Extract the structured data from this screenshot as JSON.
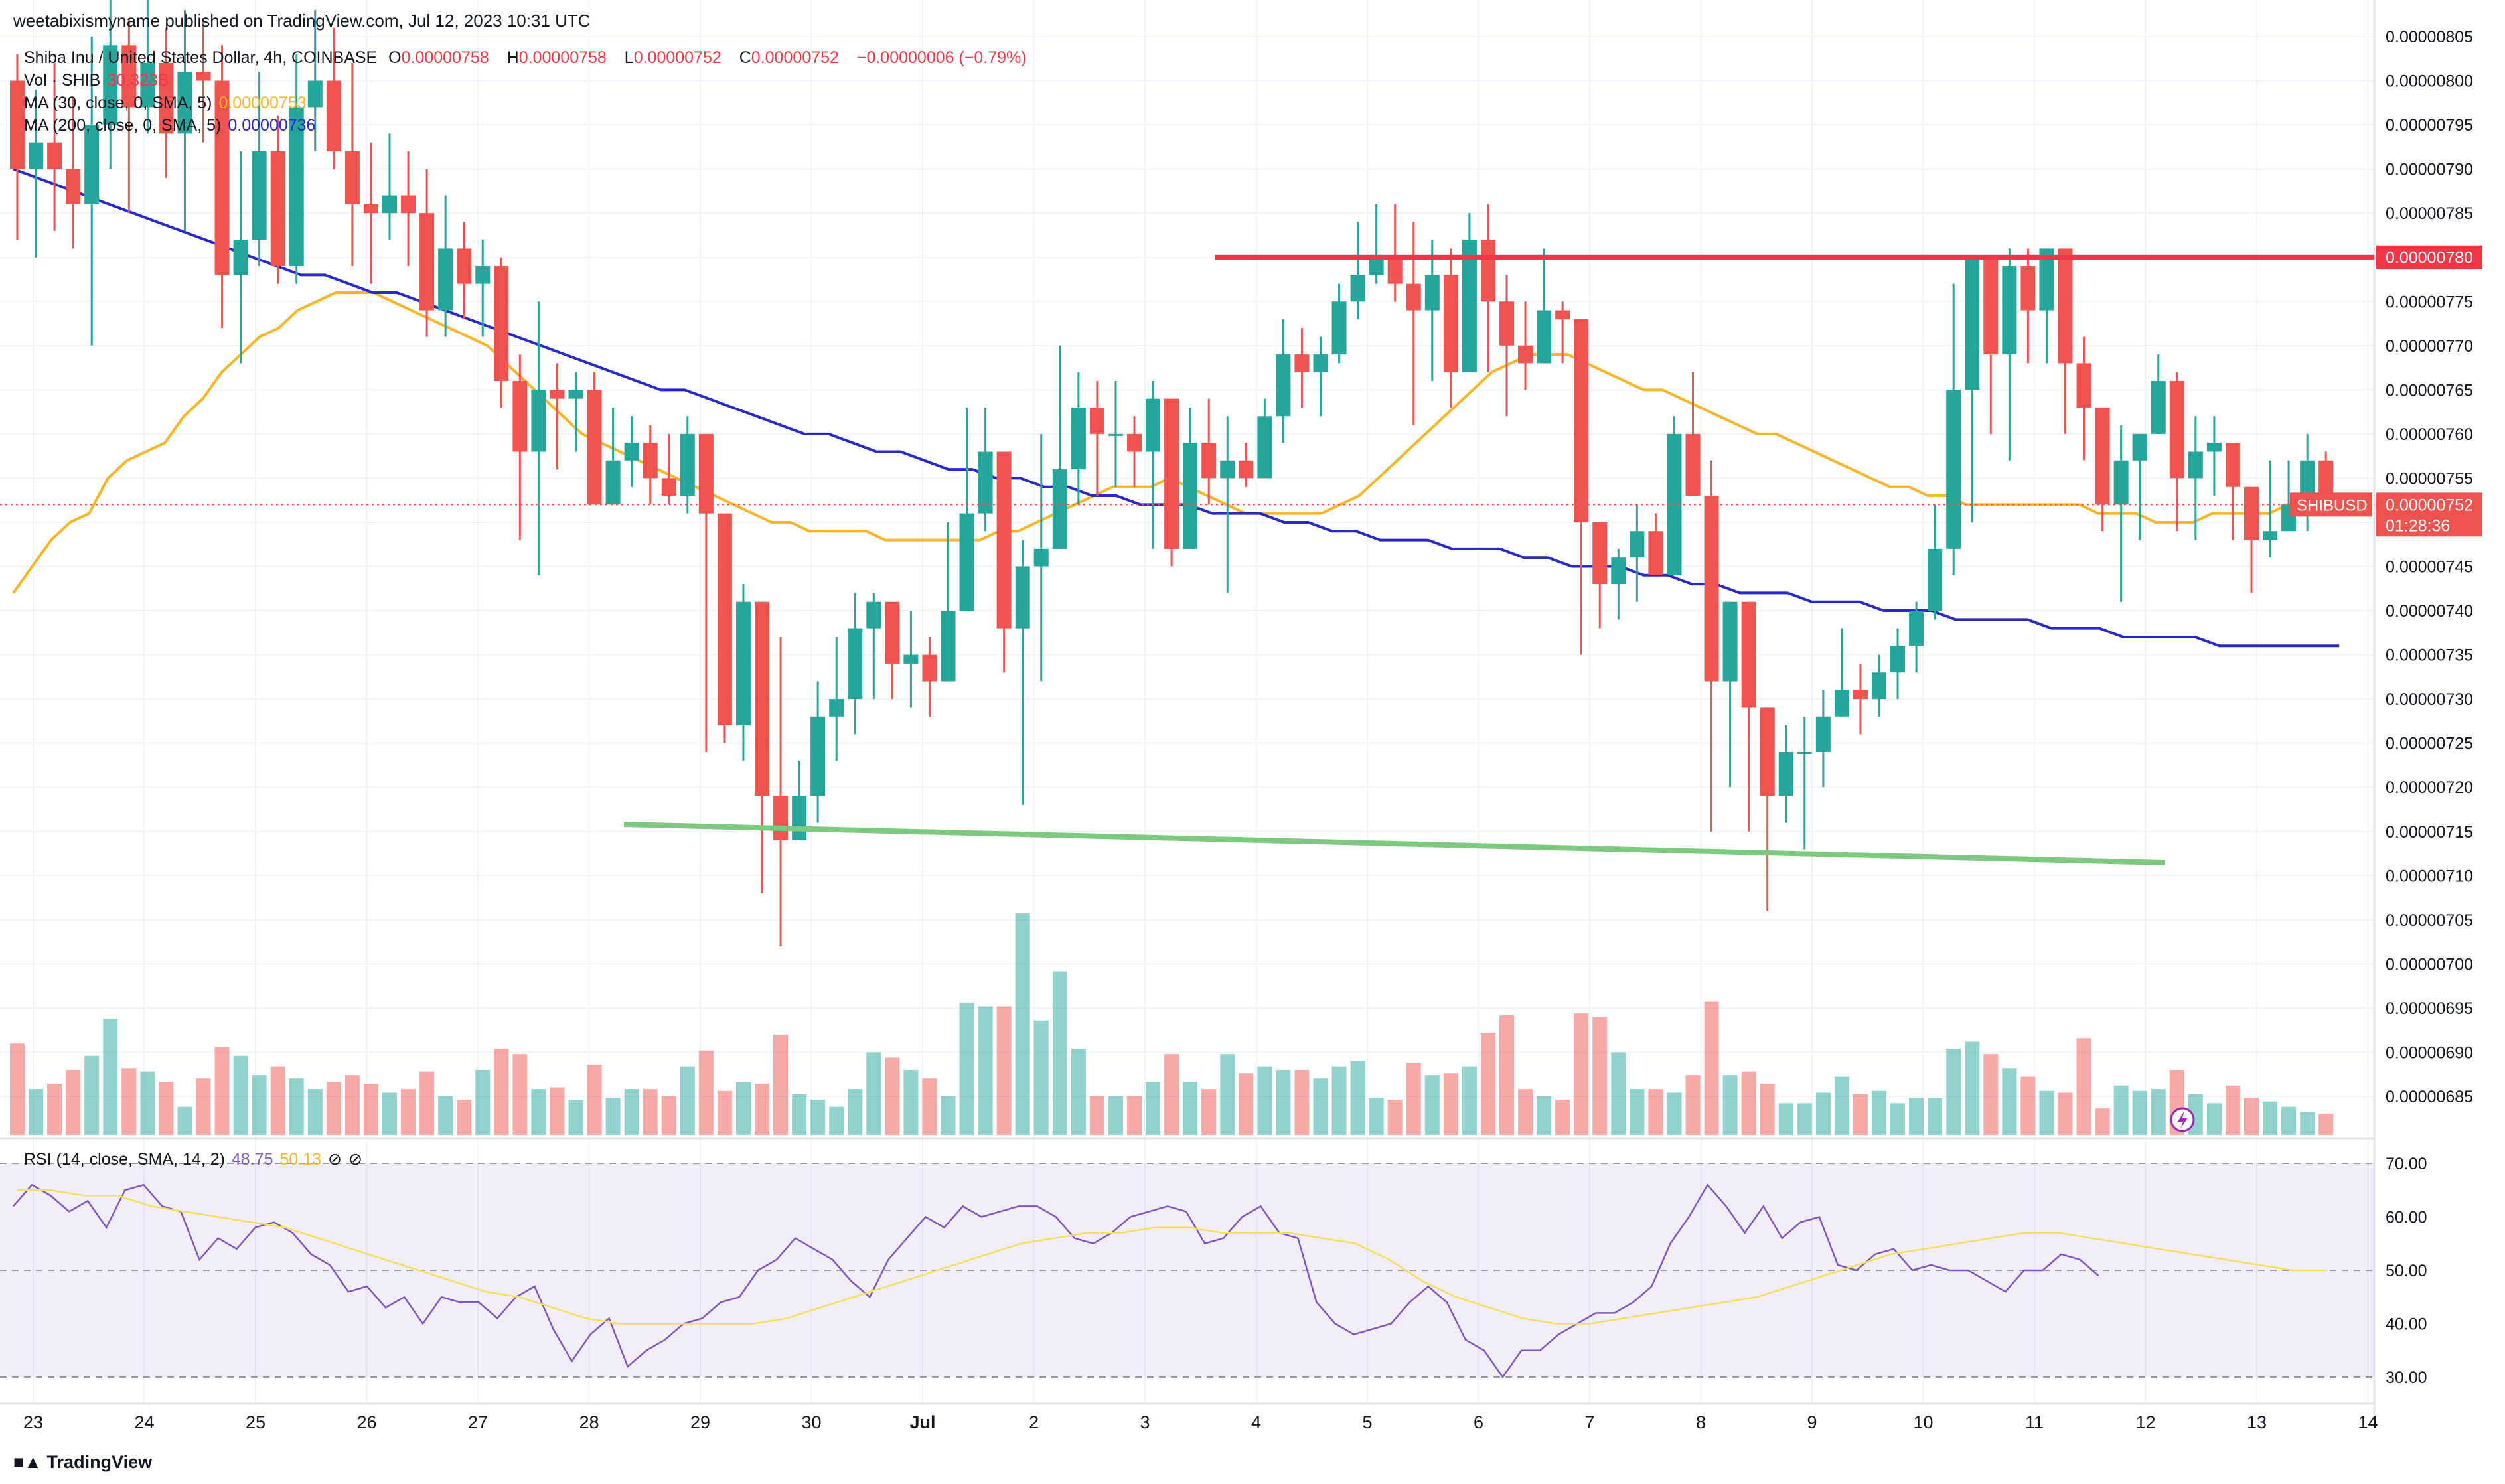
{
  "publisher_line": "weetabixismyname published on TradingView.com, Jul 12, 2023 10:31 UTC",
  "legend": {
    "symbol": "Shiba Inu / United States Dollar, 4h, COINBASE",
    "open_label": "O",
    "open": "0.00000758",
    "high_label": "H",
    "high": "0.00000758",
    "low_label": "L",
    "low": "0.00000752",
    "close_label": "C",
    "close": "0.00000752",
    "change": "−0.00000006 (−0.79%)",
    "vol_label": "Vol · SHIB",
    "vol_value": "30.323B",
    "ma30_label": "MA (30, close, 0, SMA, 5)",
    "ma30_value": "0.00000753",
    "ma200_label": "MA (200, close, 0, SMA, 5)",
    "ma200_value": "0.00000736",
    "rsi_label": "RSI (14, close, SMA, 14, 2)",
    "rsi_value": "48.75",
    "rsi_ma_value": "50.13"
  },
  "price_tag": {
    "symbol": "SHIBUSD",
    "price": "0.00000752",
    "countdown": "01:28:36"
  },
  "level_tag": {
    "price": "0.00000780"
  },
  "footer_logo": "TradingView",
  "colors": {
    "up": "#26a69a",
    "down": "#ef5350",
    "ma30": "#f7b527",
    "ma200": "#2929c8",
    "resistance": "#f23645",
    "support": "#7ec980",
    "rsi": "#7e57c2",
    "rsi_ma": "#f5e05e"
  },
  "chart_data": {
    "type": "candlestick",
    "interval": "4h",
    "y_ticks": [
      "0.00000685",
      "0.00000690",
      "0.00000695",
      "0.00000700",
      "0.00000705",
      "0.00000710",
      "0.00000715",
      "0.00000720",
      "0.00000725",
      "0.00000730",
      "0.00000735",
      "0.00000740",
      "0.00000745",
      "0.00000750",
      "0.00000755",
      "0.00000760",
      "0.00000765",
      "0.00000770",
      "0.00000775",
      "0.00000780",
      "0.00000785",
      "0.00000790",
      "0.00000795",
      "0.00000800",
      "0.00000805"
    ],
    "x_ticks": [
      "23",
      "24",
      "25",
      "26",
      "27",
      "28",
      "29",
      "30",
      "Jul",
      "2",
      "3",
      "4",
      "5",
      "6",
      "7",
      "8",
      "9",
      "10",
      "11",
      "12",
      "13",
      "14"
    ],
    "rsi_ticks": [
      "30.00",
      "40.00",
      "50.00",
      "60.00",
      "70.00"
    ],
    "candles": [
      [
        800,
        790,
        803,
        782,
        5.2
      ],
      [
        790,
        793,
        799,
        780,
        2.6
      ],
      [
        793,
        790,
        802,
        783,
        2.9
      ],
      [
        790,
        786,
        798,
        781,
        3.7
      ],
      [
        786,
        795,
        805,
        770,
        4.5
      ],
      [
        795,
        804,
        810,
        790,
        6.6
      ],
      [
        804,
        797,
        807,
        785,
        3.8
      ],
      [
        797,
        802,
        812,
        794,
        3.6
      ],
      [
        802,
        794,
        806,
        789,
        3.0
      ],
      [
        794,
        801,
        808,
        783,
        1.6
      ],
      [
        801,
        800,
        807,
        793,
        3.2
      ],
      [
        800,
        778,
        804,
        772,
        5.0
      ],
      [
        778,
        782,
        792,
        768,
        4.5
      ],
      [
        782,
        792,
        801,
        779,
        3.4
      ],
      [
        792,
        779,
        796,
        777,
        3.9
      ],
      [
        779,
        797,
        803,
        777,
        3.2
      ],
      [
        797,
        800,
        808,
        792,
        2.6
      ],
      [
        800,
        792,
        806,
        790,
        3.0
      ],
      [
        792,
        786,
        802,
        779,
        3.4
      ],
      [
        786,
        785,
        793,
        777,
        2.9
      ],
      [
        785,
        787,
        794,
        782,
        2.4
      ],
      [
        787,
        785,
        792,
        779,
        2.6
      ],
      [
        785,
        774,
        790,
        771,
        3.6
      ],
      [
        774,
        781,
        787,
        771,
        2.2
      ],
      [
        781,
        777,
        784,
        773,
        2.0
      ],
      [
        777,
        779,
        782,
        771,
        3.7
      ],
      [
        779,
        766,
        780,
        763,
        4.9
      ],
      [
        766,
        758,
        769,
        748,
        4.6
      ],
      [
        758,
        765,
        775,
        744,
        2.6
      ],
      [
        765,
        764,
        768,
        756,
        2.7
      ],
      [
        764,
        765,
        767,
        758,
        2.0
      ],
      [
        765,
        752,
        767,
        753,
        4.0
      ],
      [
        752,
        757,
        763,
        752,
        2.1
      ],
      [
        757,
        759,
        762,
        754,
        2.6
      ],
      [
        759,
        755,
        761,
        752,
        2.6
      ],
      [
        755,
        753,
        760,
        752,
        2.2
      ],
      [
        753,
        760,
        762,
        751,
        3.9
      ],
      [
        760,
        751,
        759,
        724,
        4.8
      ],
      [
        751,
        727,
        742,
        725,
        2.5
      ],
      [
        727,
        741,
        743,
        723,
        3.0
      ],
      [
        741,
        719,
        739,
        708,
        2.9
      ],
      [
        719,
        714,
        737,
        702,
        5.7
      ],
      [
        714,
        719,
        723,
        714,
        2.3
      ],
      [
        719,
        728,
        732,
        716,
        2.0
      ],
      [
        728,
        730,
        737,
        723,
        1.6
      ],
      [
        730,
        738,
        742,
        726,
        2.6
      ],
      [
        738,
        741,
        742,
        730,
        4.7
      ],
      [
        741,
        734,
        737,
        730,
        4.4
      ],
      [
        734,
        735,
        740,
        729,
        3.7
      ],
      [
        735,
        732,
        737,
        728,
        3.2
      ],
      [
        732,
        740,
        750,
        737,
        2.2
      ],
      [
        740,
        751,
        763,
        745,
        7.5
      ],
      [
        751,
        758,
        763,
        749,
        7.3
      ],
      [
        758,
        738,
        750,
        733,
        7.3
      ],
      [
        738,
        745,
        748,
        718,
        12.6
      ],
      [
        745,
        747,
        760,
        732,
        6.5
      ],
      [
        747,
        756,
        770,
        752,
        9.3
      ],
      [
        756,
        763,
        767,
        752,
        4.9
      ],
      [
        763,
        760,
        766,
        753,
        2.2
      ],
      [
        760,
        760,
        766,
        754,
        2.2
      ],
      [
        760,
        758,
        762,
        754,
        2.2
      ],
      [
        758,
        764,
        766,
        747,
        3.0
      ],
      [
        764,
        747,
        763,
        745,
        4.6
      ],
      [
        747,
        759,
        763,
        747,
        3.0
      ],
      [
        759,
        755,
        764,
        752,
        2.6
      ],
      [
        755,
        757,
        762,
        742,
        4.6
      ],
      [
        757,
        755,
        759,
        754,
        3.5
      ],
      [
        755,
        762,
        764,
        757,
        3.9
      ],
      [
        762,
        769,
        773,
        759,
        3.7
      ],
      [
        769,
        767,
        772,
        763,
        3.7
      ],
      [
        767,
        769,
        771,
        762,
        3.2
      ],
      [
        769,
        775,
        777,
        768,
        3.9
      ],
      [
        775,
        778,
        784,
        773,
        4.2
      ],
      [
        778,
        780,
        786,
        777,
        2.1
      ],
      [
        780,
        777,
        786,
        775,
        2.0
      ],
      [
        777,
        774,
        784,
        761,
        4.1
      ],
      [
        774,
        778,
        782,
        766,
        3.4
      ],
      [
        778,
        767,
        781,
        763,
        3.5
      ],
      [
        767,
        782,
        785,
        770,
        3.9
      ],
      [
        782,
        775,
        786,
        767,
        5.8
      ],
      [
        775,
        770,
        778,
        762,
        6.8
      ],
      [
        770,
        768,
        775,
        765,
        2.6
      ],
      [
        768,
        774,
        781,
        769,
        2.2
      ],
      [
        774,
        773,
        775,
        768,
        2.0
      ],
      [
        773,
        750,
        771,
        735,
        6.9
      ],
      [
        750,
        743,
        750,
        738,
        6.7
      ],
      [
        743,
        746,
        747,
        739,
        4.7
      ],
      [
        746,
        749,
        752,
        741,
        2.6
      ],
      [
        749,
        744,
        751,
        744,
        2.6
      ],
      [
        744,
        760,
        762,
        746,
        2.4
      ],
      [
        760,
        753,
        767,
        754,
        3.4
      ],
      [
        753,
        732,
        757,
        715,
        7.6
      ],
      [
        732,
        741,
        737,
        720,
        3.4
      ],
      [
        741,
        729,
        731,
        715,
        3.6
      ],
      [
        729,
        719,
        724,
        706,
        2.9
      ],
      [
        719,
        724,
        727,
        716,
        1.8
      ],
      [
        724,
        724,
        728,
        713,
        1.8
      ],
      [
        724,
        728,
        731,
        720,
        2.4
      ],
      [
        728,
        731,
        738,
        728,
        3.3
      ],
      [
        731,
        730,
        734,
        726,
        2.3
      ],
      [
        730,
        733,
        735,
        728,
        2.5
      ],
      [
        733,
        736,
        738,
        730,
        1.8
      ],
      [
        736,
        740,
        741,
        733,
        2.1
      ],
      [
        740,
        747,
        752,
        739,
        2.1
      ],
      [
        747,
        765,
        777,
        744,
        4.9
      ],
      [
        765,
        780,
        780,
        750,
        5.3
      ],
      [
        780,
        769,
        780,
        760,
        4.6
      ],
      [
        769,
        779,
        781,
        757,
        3.8
      ],
      [
        779,
        774,
        781,
        768,
        3.3
      ],
      [
        774,
        781,
        780,
        768,
        2.5
      ],
      [
        781,
        768,
        775,
        760,
        2.4
      ],
      [
        768,
        763,
        771,
        757,
        5.5
      ],
      [
        763,
        752,
        760,
        749,
        1.5
      ],
      [
        752,
        757,
        761,
        741,
        2.8
      ],
      [
        757,
        760,
        760,
        748,
        2.5
      ],
      [
        760,
        766,
        769,
        762,
        2.6
      ],
      [
        766,
        755,
        767,
        749,
        3.7
      ],
      [
        755,
        758,
        762,
        748,
        2.3
      ],
      [
        758,
        759,
        762,
        753,
        1.8
      ],
      [
        759,
        754,
        755,
        748,
        2.8
      ],
      [
        754,
        748,
        752,
        742,
        2.1
      ],
      [
        748,
        749,
        757,
        746,
        1.9
      ],
      [
        749,
        752,
        757,
        750,
        1.6
      ],
      [
        752,
        757,
        760,
        749,
        1.3
      ],
      [
        757,
        752,
        758,
        752,
        1.2
      ]
    ],
    "ma30": [
      742,
      745,
      748,
      750,
      751,
      755,
      757,
      758,
      759,
      762,
      764,
      767,
      769,
      771,
      772,
      774,
      775,
      776,
      776,
      776,
      775,
      774,
      773,
      772,
      771,
      770,
      768,
      766,
      764,
      762,
      760,
      759,
      758,
      757,
      756,
      755,
      754,
      753,
      752,
      751,
      750,
      750,
      749,
      749,
      749,
      749,
      748,
      748,
      748,
      748,
      748,
      748,
      749,
      749,
      750,
      751,
      752,
      753,
      754,
      754,
      754,
      755,
      754,
      753,
      752,
      751,
      751,
      751,
      751,
      751,
      752,
      753,
      755,
      757,
      759,
      761,
      763,
      765,
      767,
      768,
      769,
      769,
      769,
      768,
      767,
      766,
      765,
      765,
      764,
      763,
      762,
      761,
      760,
      760,
      759,
      758,
      757,
      756,
      755,
      754,
      754,
      753,
      753,
      752,
      752,
      752,
      752,
      752,
      752,
      752,
      751,
      751,
      751,
      750,
      750,
      750,
      751,
      751,
      751,
      751,
      752,
      752,
      753
    ],
    "ma200": [
      790,
      789,
      788,
      787,
      786,
      785,
      784,
      783,
      782,
      781,
      780,
      779,
      778,
      778,
      777,
      776,
      776,
      775,
      774,
      773,
      772,
      771,
      770,
      769,
      768,
      767,
      766,
      765,
      765,
      764,
      763,
      762,
      761,
      760,
      760,
      759,
      758,
      758,
      757,
      756,
      756,
      755,
      755,
      754,
      754,
      753,
      753,
      752,
      752,
      752,
      751,
      751,
      751,
      750,
      750,
      749,
      749,
      748,
      748,
      748,
      747,
      747,
      747,
      746,
      746,
      745,
      745,
      745,
      744,
      744,
      743,
      743,
      742,
      742,
      742,
      741,
      741,
      741,
      740,
      740,
      740,
      739,
      739,
      739,
      739,
      738,
      738,
      738,
      737,
      737,
      737,
      737,
      736,
      736,
      736,
      736,
      736,
      736
    ],
    "rsi": [
      62,
      66,
      64,
      61,
      63,
      58,
      65,
      66,
      62,
      61,
      52,
      56,
      54,
      58,
      59,
      57,
      53,
      51,
      46,
      47,
      43,
      45,
      40,
      45,
      44,
      44,
      41,
      45,
      47,
      39,
      33,
      38,
      41,
      32,
      35,
      37,
      40,
      41,
      44,
      45,
      50,
      52,
      56,
      54,
      52,
      48,
      45,
      52,
      56,
      60,
      58,
      62,
      60,
      61,
      62,
      62,
      60,
      56,
      55,
      57,
      60,
      61,
      62,
      61,
      55,
      56,
      60,
      62,
      57,
      56,
      44,
      40,
      38,
      39,
      40,
      44,
      47,
      44,
      37,
      35,
      30,
      35,
      35,
      38,
      40,
      42,
      42,
      44,
      47,
      55,
      60,
      66,
      62,
      57,
      62,
      56,
      59,
      60,
      51,
      50,
      53,
      54,
      50,
      51,
      50,
      50,
      48,
      46,
      50,
      50,
      53,
      52,
      49
    ],
    "rsi_ma": [
      65,
      65,
      64,
      64,
      62,
      61,
      60,
      59,
      58,
      56,
      54,
      52,
      50,
      48,
      46,
      45,
      43,
      41,
      40,
      40,
      40,
      40,
      40,
      41,
      43,
      45,
      47,
      49,
      51,
      53,
      55,
      56,
      57,
      57,
      58,
      58,
      57,
      57,
      57,
      56,
      55,
      52,
      48,
      45,
      43,
      41,
      40,
      40,
      41,
      42,
      43,
      44,
      45,
      47,
      49,
      51,
      53,
      54,
      55,
      56,
      57,
      57,
      56,
      55,
      54,
      53,
      52,
      51,
      50,
      50
    ]
  }
}
